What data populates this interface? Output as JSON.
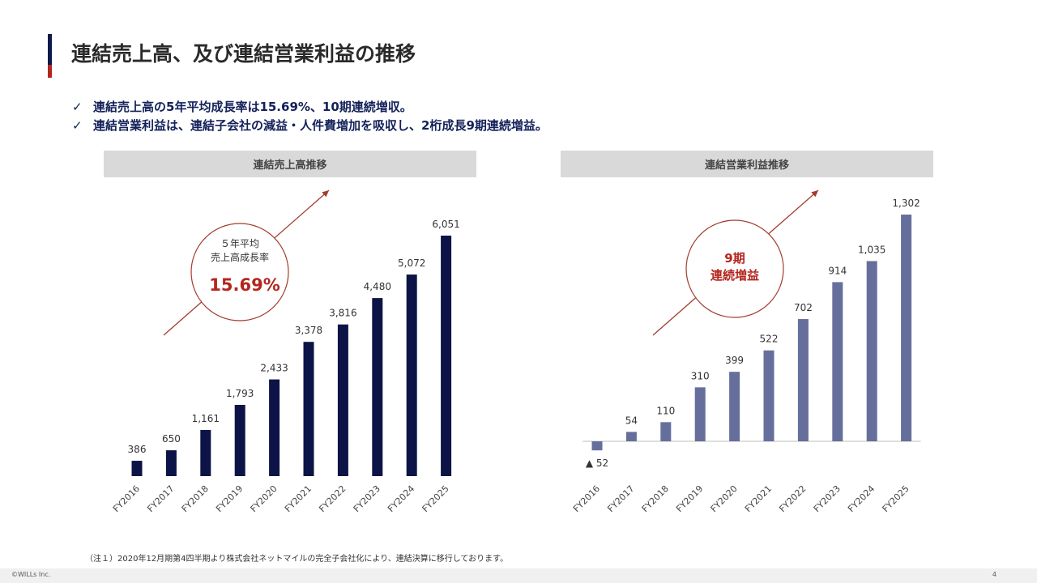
{
  "page": {
    "title": "連結売上高、及び連結営業利益の推移",
    "bullets": [
      "連結売上高の5年平均成長率は15.69%、10期連続増収。",
      "連結営業利益は、連結子会社の減益・人件費増加を吸収し、2桁成長9期連続増益。"
    ],
    "check_mark": "✓",
    "note": "（注１）2020年12月期第4四半期より株式会社ネットマイルの完全子会社化により、連結決算に移行しております。",
    "footer_copyright": "©WILLs Inc.",
    "page_number": "4"
  },
  "colors": {
    "navy": "#0d1a4b",
    "red": "#b3261e",
    "bar_left": "#0c1447",
    "bar_right": "#666f9c",
    "arrow": "#a23b2c"
  },
  "left_callout": {
    "line1": "５年平均",
    "line2": "売上高成長率",
    "value": "15.69%"
  },
  "right_callout": {
    "line1": "9期",
    "line2": "連続増益"
  },
  "chart_data": [
    {
      "type": "bar",
      "title": "連結売上高推移",
      "categories": [
        "FY2016",
        "FY2017",
        "FY2018",
        "FY2019",
        "FY2020",
        "FY2021",
        "FY2022",
        "FY2023",
        "FY2024",
        "FY2025"
      ],
      "values": [
        386,
        650,
        1161,
        1793,
        2433,
        3378,
        3816,
        4480,
        5072,
        6051
      ],
      "labels": [
        "386",
        "650",
        "1,161",
        "1,793",
        "2,433",
        "3,378",
        "3,816",
        "4,480",
        "5,072",
        "6,051"
      ],
      "ylim": [
        0,
        6400
      ],
      "xlabel": "",
      "ylabel": "",
      "grid": false
    },
    {
      "type": "bar",
      "title": "連結営業利益推移",
      "categories": [
        "FY2016",
        "FY2017",
        "FY2018",
        "FY2019",
        "FY2020",
        "FY2021",
        "FY2022",
        "FY2023",
        "FY2024",
        "FY2025"
      ],
      "values": [
        -52,
        54,
        110,
        310,
        399,
        522,
        702,
        914,
        1035,
        1302
      ],
      "labels": [
        "▲ 52",
        "54",
        "110",
        "310",
        "399",
        "522",
        "702",
        "914",
        "1,035",
        "1,302"
      ],
      "ylim": [
        -100,
        1400
      ],
      "xlabel": "",
      "ylabel": "",
      "grid": false
    }
  ]
}
